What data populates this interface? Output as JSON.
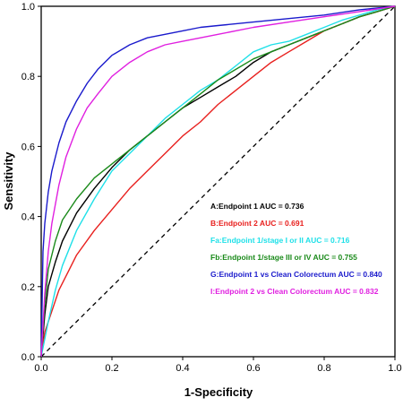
{
  "chart_data": {
    "type": "line",
    "title": "",
    "xlabel": "1-Specificity",
    "ylabel": "Sensitivity",
    "xlim": [
      0,
      1
    ],
    "ylim": [
      0,
      1
    ],
    "x_ticks": [
      "0.0",
      "0.2",
      "0.4",
      "0.6",
      "0.8",
      "1.0"
    ],
    "y_ticks": [
      "0.0",
      "0.2",
      "0.4",
      "0.6",
      "0.8",
      "1.0"
    ],
    "grid": false,
    "legend_position": "bottom-right",
    "reference_line": {
      "style": "dashed",
      "color": "#000000",
      "from": [
        0,
        0
      ],
      "to": [
        1,
        1
      ]
    },
    "series": [
      {
        "name": "A:Endpoint 1 AUC = 0.736",
        "color": "#000000",
        "x": [
          0,
          0.01,
          0.02,
          0.04,
          0.06,
          0.1,
          0.15,
          0.2,
          0.25,
          0.3,
          0.35,
          0.4,
          0.45,
          0.5,
          0.55,
          0.6,
          0.65,
          0.7,
          0.75,
          0.8,
          0.85,
          0.9,
          0.95,
          1.0
        ],
        "y": [
          0,
          0.12,
          0.2,
          0.27,
          0.33,
          0.41,
          0.48,
          0.54,
          0.59,
          0.63,
          0.67,
          0.71,
          0.74,
          0.77,
          0.8,
          0.84,
          0.87,
          0.89,
          0.91,
          0.93,
          0.95,
          0.97,
          0.985,
          1.0
        ]
      },
      {
        "name": "B:Endpoint 2 AUC = 0.691",
        "color": "#e8201e",
        "x": [
          0,
          0.01,
          0.03,
          0.05,
          0.08,
          0.1,
          0.15,
          0.2,
          0.25,
          0.3,
          0.35,
          0.4,
          0.45,
          0.5,
          0.55,
          0.6,
          0.65,
          0.7,
          0.75,
          0.8,
          0.85,
          0.9,
          0.95,
          1.0
        ],
        "y": [
          0,
          0.07,
          0.13,
          0.19,
          0.25,
          0.29,
          0.36,
          0.42,
          0.48,
          0.53,
          0.58,
          0.63,
          0.67,
          0.72,
          0.76,
          0.8,
          0.84,
          0.87,
          0.9,
          0.93,
          0.95,
          0.97,
          0.985,
          1.0
        ]
      },
      {
        "name": "Fa:Endpoint 1/stage I or II AUC = 0.716",
        "color": "#1fe0e8",
        "x": [
          0,
          0.02,
          0.04,
          0.06,
          0.08,
          0.1,
          0.15,
          0.2,
          0.25,
          0.3,
          0.35,
          0.4,
          0.45,
          0.5,
          0.55,
          0.6,
          0.65,
          0.7,
          0.75,
          0.8,
          0.85,
          0.9,
          0.95,
          1.0
        ],
        "y": [
          0,
          0.1,
          0.19,
          0.26,
          0.31,
          0.36,
          0.45,
          0.53,
          0.58,
          0.63,
          0.68,
          0.72,
          0.76,
          0.79,
          0.83,
          0.87,
          0.89,
          0.9,
          0.92,
          0.94,
          0.96,
          0.975,
          0.99,
          1.0
        ]
      },
      {
        "name": "Fb:Endpoint 1/stage III or IV AUC = 0.755",
        "color": "#1a8a1a",
        "x": [
          0,
          0.01,
          0.02,
          0.04,
          0.06,
          0.1,
          0.15,
          0.2,
          0.25,
          0.3,
          0.35,
          0.4,
          0.45,
          0.5,
          0.55,
          0.6,
          0.65,
          0.7,
          0.75,
          0.8,
          0.85,
          0.9,
          0.95,
          1.0
        ],
        "y": [
          0,
          0.15,
          0.25,
          0.33,
          0.39,
          0.45,
          0.51,
          0.55,
          0.59,
          0.63,
          0.67,
          0.71,
          0.75,
          0.79,
          0.82,
          0.85,
          0.87,
          0.89,
          0.91,
          0.93,
          0.95,
          0.97,
          0.985,
          1.0
        ]
      },
      {
        "name": "G:Endpoint 1 vs Clean Colorectum AUC = 0.840",
        "color": "#1a1acc",
        "x": [
          0,
          0.005,
          0.01,
          0.02,
          0.03,
          0.05,
          0.07,
          0.1,
          0.13,
          0.16,
          0.2,
          0.25,
          0.3,
          0.35,
          0.4,
          0.45,
          0.5,
          0.6,
          0.7,
          0.8,
          0.9,
          1.0
        ],
        "y": [
          0,
          0.3,
          0.38,
          0.47,
          0.53,
          0.61,
          0.67,
          0.73,
          0.78,
          0.82,
          0.86,
          0.89,
          0.91,
          0.92,
          0.93,
          0.94,
          0.945,
          0.955,
          0.965,
          0.975,
          0.99,
          1.0
        ]
      },
      {
        "name": "I:Endpoint 2 vs Clean Colorectum AUC = 0.832",
        "color": "#e020e0",
        "x": [
          0,
          0.01,
          0.02,
          0.03,
          0.05,
          0.07,
          0.1,
          0.13,
          0.16,
          0.2,
          0.25,
          0.3,
          0.35,
          0.4,
          0.45,
          0.5,
          0.6,
          0.7,
          0.8,
          0.9,
          1.0
        ],
        "y": [
          0,
          0.18,
          0.3,
          0.38,
          0.49,
          0.57,
          0.65,
          0.71,
          0.75,
          0.8,
          0.84,
          0.87,
          0.89,
          0.9,
          0.91,
          0.92,
          0.94,
          0.955,
          0.97,
          0.985,
          1.0
        ]
      }
    ]
  }
}
